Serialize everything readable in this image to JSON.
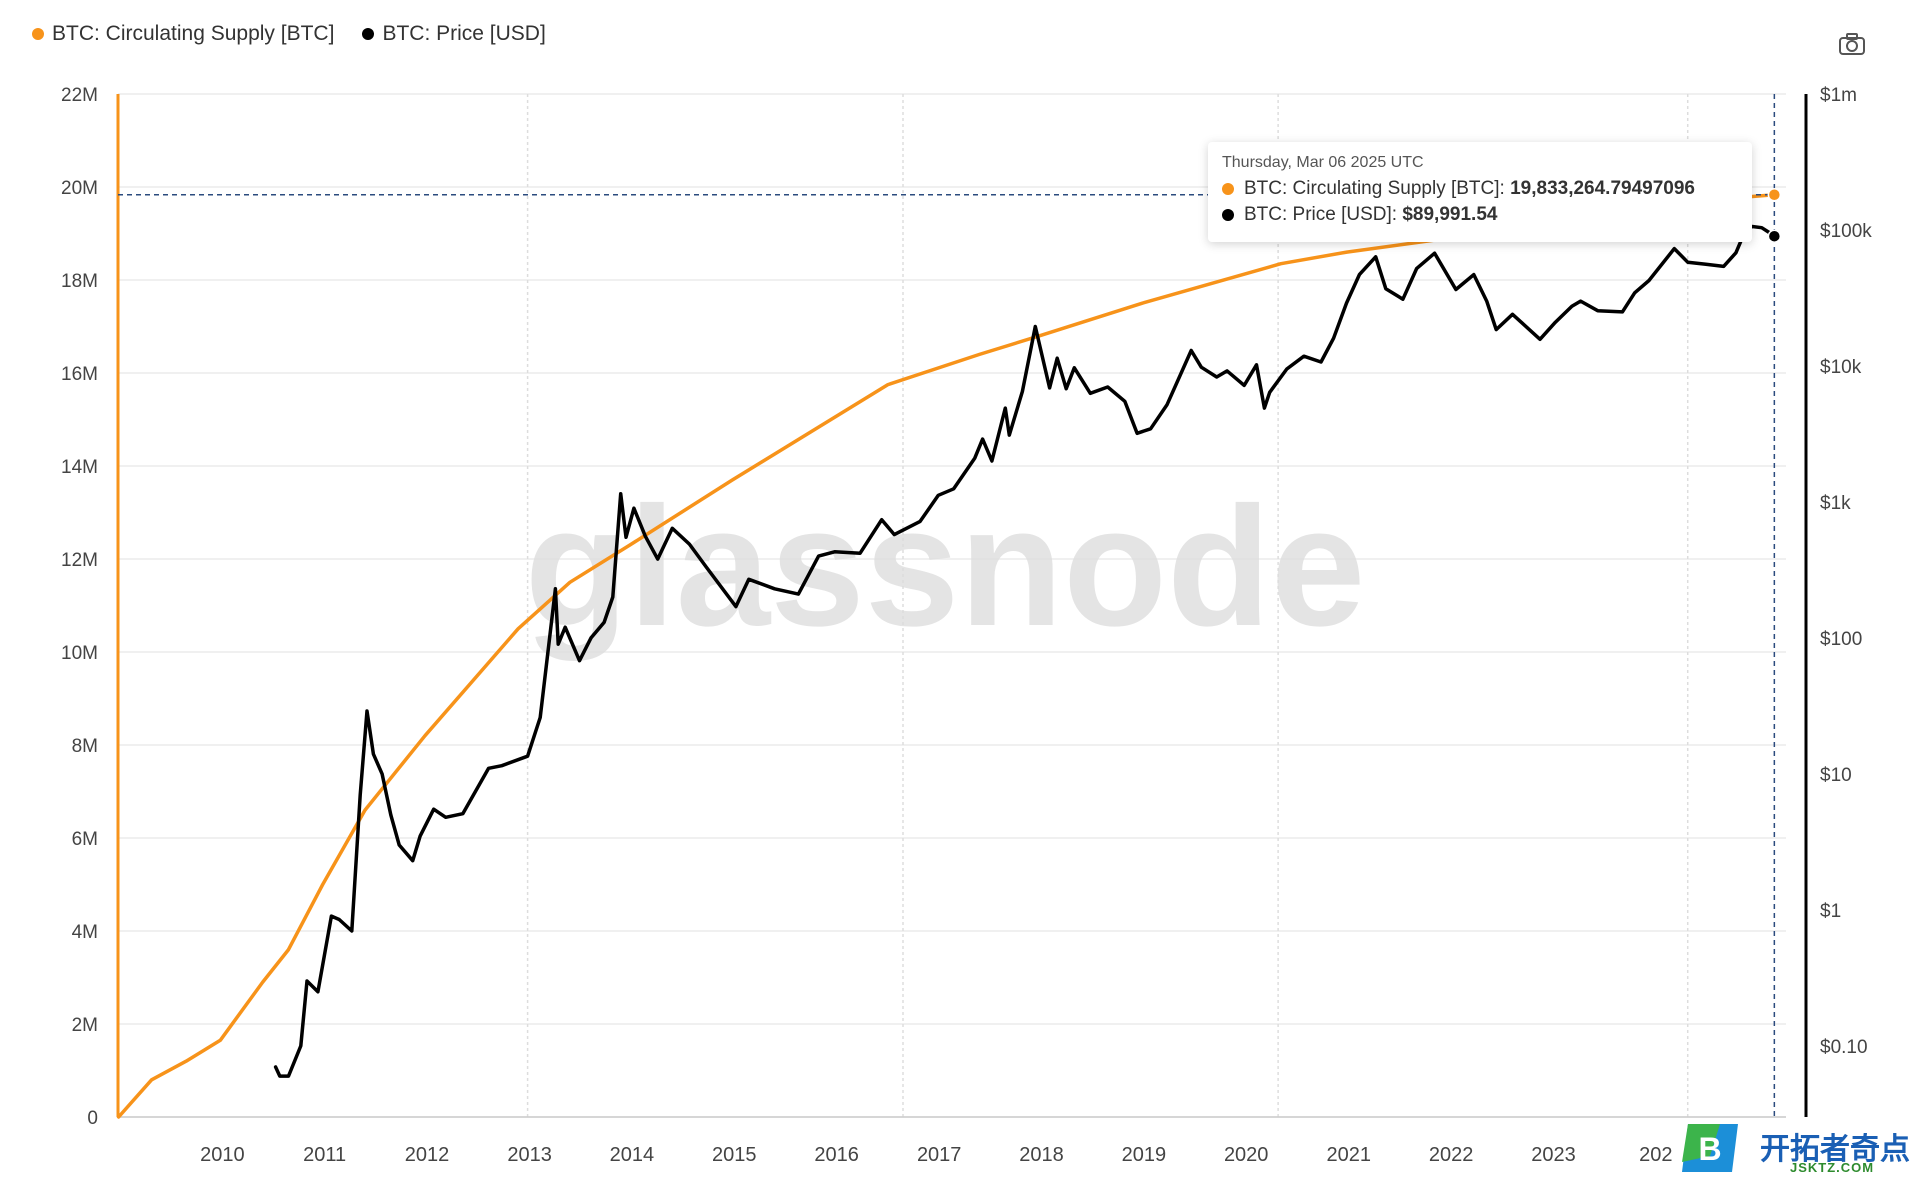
{
  "legend": [
    {
      "label": "BTC: Circulating Supply [BTC]",
      "color": "#f7931a"
    },
    {
      "label": "BTC: Price [USD]",
      "color": "#000000"
    }
  ],
  "toolbar": {
    "camera_icon": "camera-icon"
  },
  "watermark": "glassnode",
  "tooltip": {
    "date": "Thursday, Mar 06 2025 UTC",
    "rows": [
      {
        "label": "BTC: Circulating Supply [BTC]: ",
        "value": "19,833,264.79497096",
        "color": "#f7931a"
      },
      {
        "label": "BTC: Price [USD]: ",
        "value": "$89,991.54",
        "color": "#000000"
      }
    ]
  },
  "brand": {
    "name": "开拓者奇点",
    "url": "JSKTZ.COM",
    "logo_letter": "B"
  },
  "chart_data": {
    "type": "line",
    "x_ticks": [
      "2010",
      "2011",
      "2012",
      "2013",
      "2014",
      "2015",
      "2016",
      "2017",
      "2018",
      "2019",
      "2020",
      "2021",
      "2022",
      "2023",
      "202"
    ],
    "y_left_ticks": [
      "0",
      "2M",
      "4M",
      "6M",
      "8M",
      "10M",
      "12M",
      "14M",
      "16M",
      "18M",
      "20M",
      "22M"
    ],
    "y_left_range": [
      0,
      22000000
    ],
    "y_right_ticks": [
      "$0.10",
      "$1",
      "$10",
      "$100",
      "$1k",
      "$10k",
      "$100k",
      "$1m"
    ],
    "y_right_scale": "log",
    "y_right_range": [
      0.03,
      1000000
    ],
    "grid": true,
    "legend_position": "top-left",
    "series": [
      {
        "name": "BTC: Circulating Supply [BTC]",
        "axis": "left",
        "color": "#f7931a",
        "x": [
          "2009-01-03",
          "2009-05-01",
          "2009-09-01",
          "2010-01-01",
          "2010-06-01",
          "2010-09-01",
          "2011-01-01",
          "2011-06-01",
          "2012-01-01",
          "2012-11-28",
          "2013-06-01",
          "2014-01-01",
          "2015-01-01",
          "2016-07-09",
          "2017-06-01",
          "2018-01-01",
          "2019-01-01",
          "2020-05-11",
          "2021-01-01",
          "2022-01-01",
          "2023-01-01",
          "2024-04-20",
          "2025-03-06"
        ],
        "y": [
          0,
          800000,
          1200000,
          1650000,
          2900000,
          3600000,
          5000000,
          6600000,
          8200000,
          10500000,
          11500000,
          12300000,
          13700000,
          15750000,
          16400000,
          16800000,
          17500000,
          18350000,
          18600000,
          18900000,
          19250000,
          19680000,
          19833265
        ]
      },
      {
        "name": "BTC: Price [USD]",
        "axis": "right",
        "color": "#000000",
        "x": [
          "2010-07-17",
          "2010-08-01",
          "2010-09-01",
          "2010-10-15",
          "2010-11-06",
          "2010-12-15",
          "2011-02-01",
          "2011-03-01",
          "2011-04-15",
          "2011-05-15",
          "2011-06-08",
          "2011-07-01",
          "2011-08-01",
          "2011-09-01",
          "2011-10-01",
          "2011-11-18",
          "2011-12-15",
          "2012-02-01",
          "2012-03-15",
          "2012-05-15",
          "2012-08-15",
          "2012-10-01",
          "2013-01-01",
          "2013-02-15",
          "2013-04-10",
          "2013-04-20",
          "2013-05-15",
          "2013-07-05",
          "2013-08-15",
          "2013-10-01",
          "2013-11-01",
          "2013-11-29",
          "2013-12-18",
          "2014-01-15",
          "2014-02-25",
          "2014-04-10",
          "2014-06-01",
          "2014-08-01",
          "2014-10-01",
          "2015-01-14",
          "2015-03-01",
          "2015-06-01",
          "2015-08-25",
          "2015-11-05",
          "2016-01-01",
          "2016-04-01",
          "2016-06-17",
          "2016-08-01",
          "2016-11-01",
          "2017-01-05",
          "2017-03-01",
          "2017-05-15",
          "2017-06-12",
          "2017-07-15",
          "2017-09-01",
          "2017-09-15",
          "2017-11-01",
          "2017-12-17",
          "2018-02-06",
          "2018-03-05",
          "2018-04-06",
          "2018-05-05",
          "2018-07-01",
          "2018-09-01",
          "2018-11-01",
          "2018-12-15",
          "2019-02-01",
          "2019-04-01",
          "2019-06-26",
          "2019-08-01",
          "2019-09-25",
          "2019-11-01",
          "2020-01-01",
          "2020-02-14",
          "2020-03-13",
          "2020-04-01",
          "2020-06-01",
          "2020-08-01",
          "2020-10-01",
          "2020-11-15",
          "2020-12-31",
          "2021-02-15",
          "2021-04-14",
          "2021-05-20",
          "2021-07-20",
          "2021-09-07",
          "2021-11-10",
          "2022-01-25",
          "2022-03-30",
          "2022-05-15",
          "2022-06-18",
          "2022-08-15",
          "2022-11-21",
          "2023-01-15",
          "2023-03-15",
          "2023-04-15",
          "2023-06-15",
          "2023-09-11",
          "2023-10-25",
          "2023-12-15",
          "2024-03-14",
          "2024-05-01",
          "2024-07-05",
          "2024-09-06",
          "2024-10-20",
          "2024-11-22",
          "2024-12-17",
          "2025-01-20",
          "2025-02-15",
          "2025-03-06"
        ],
        "y": [
          0.07,
          0.06,
          0.06,
          0.1,
          0.3,
          0.25,
          0.9,
          0.85,
          0.7,
          7,
          29,
          14,
          10,
          5,
          3,
          2.3,
          3.5,
          5.5,
          4.8,
          5.1,
          11,
          11.5,
          13.5,
          26,
          230,
          90,
          120,
          68,
          100,
          130,
          200,
          1150,
          550,
          900,
          560,
          380,
          640,
          490,
          330,
          170,
          270,
          230,
          210,
          400,
          430,
          420,
          740,
          575,
          720,
          1120,
          1250,
          2100,
          2900,
          2000,
          4900,
          3100,
          6500,
          19500,
          6900,
          11400,
          6800,
          9700,
          6300,
          7000,
          5500,
          3200,
          3450,
          5200,
          13000,
          9800,
          8300,
          9200,
          7200,
          10200,
          4900,
          6400,
          9500,
          11800,
          10700,
          16000,
          29000,
          47000,
          63500,
          37000,
          31000,
          52000,
          67500,
          36500,
          47000,
          30000,
          18500,
          24000,
          15700,
          21000,
          27500,
          30000,
          25500,
          25000,
          34500,
          42500,
          73000,
          58000,
          56000,
          54000,
          68000,
          98500,
          106000,
          104000,
          96000,
          89991.54
        ]
      }
    ],
    "crosshair": {
      "date": "2025-03-06",
      "supply": 19833264.79497096,
      "price": 89991.54
    }
  }
}
